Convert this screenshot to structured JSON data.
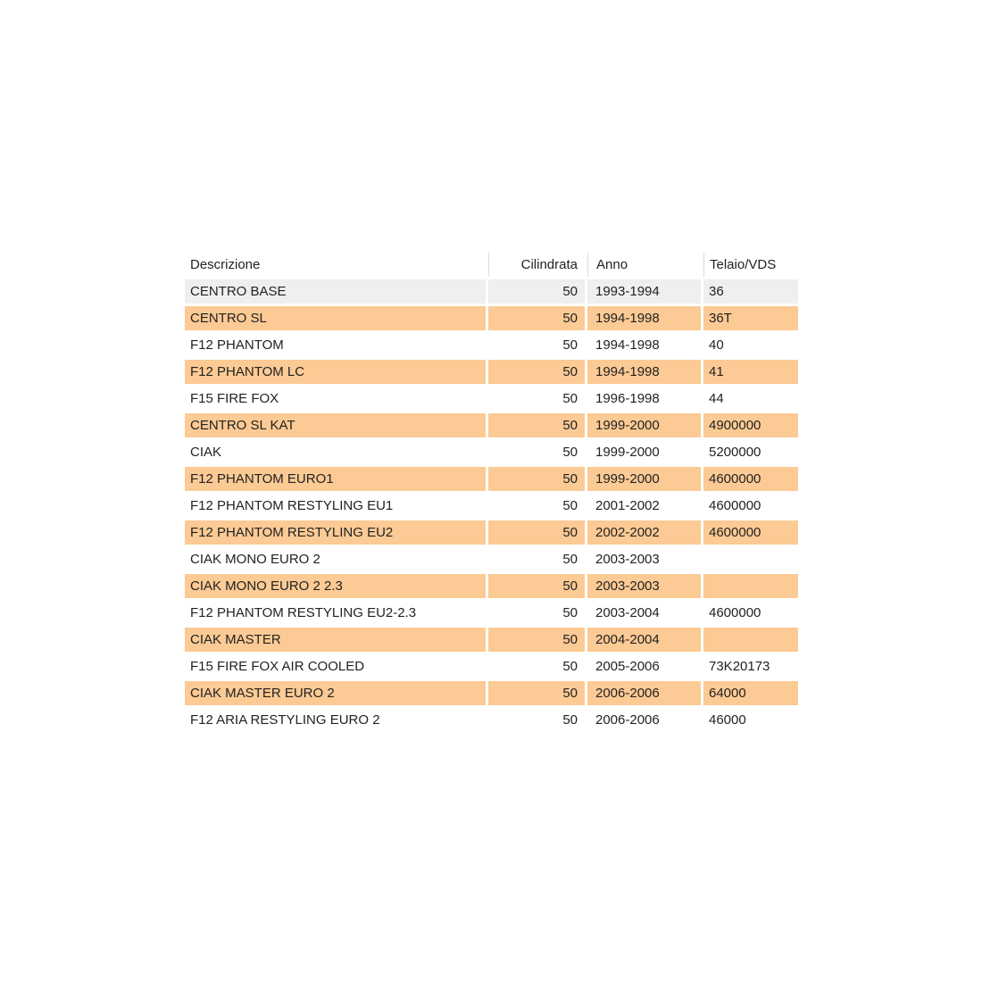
{
  "table": {
    "columns": [
      {
        "key": "descrizione",
        "label": "Descrizione"
      },
      {
        "key": "cilindrata",
        "label": "Cilindrata"
      },
      {
        "key": "anno",
        "label": "Anno"
      },
      {
        "key": "telaio",
        "label": "Telaio/VDS"
      }
    ],
    "rows": [
      {
        "descrizione": "CENTRO BASE",
        "cilindrata": "50",
        "anno": "1993-1994",
        "telaio": "36",
        "bg": "gray"
      },
      {
        "descrizione": "CENTRO SL",
        "cilindrata": "50",
        "anno": "1994-1998",
        "telaio": "36T",
        "bg": "orange"
      },
      {
        "descrizione": "F12 PHANTOM",
        "cilindrata": "50",
        "anno": "1994-1998",
        "telaio": "40",
        "bg": "white"
      },
      {
        "descrizione": "F12 PHANTOM LC",
        "cilindrata": "50",
        "anno": "1994-1998",
        "telaio": "41",
        "bg": "orange"
      },
      {
        "descrizione": "F15 FIRE FOX",
        "cilindrata": "50",
        "anno": "1996-1998",
        "telaio": "44",
        "bg": "white"
      },
      {
        "descrizione": "CENTRO SL KAT",
        "cilindrata": "50",
        "anno": "1999-2000",
        "telaio": "4900000",
        "bg": "orange"
      },
      {
        "descrizione": "CIAK",
        "cilindrata": "50",
        "anno": "1999-2000",
        "telaio": "5200000",
        "bg": "white"
      },
      {
        "descrizione": "F12 PHANTOM EURO1",
        "cilindrata": "50",
        "anno": "1999-2000",
        "telaio": "4600000",
        "bg": "orange"
      },
      {
        "descrizione": "F12 PHANTOM RESTYLING EU1",
        "cilindrata": "50",
        "anno": "2001-2002",
        "telaio": "4600000",
        "bg": "white"
      },
      {
        "descrizione": "F12 PHANTOM RESTYLING EU2",
        "cilindrata": "50",
        "anno": "2002-2002",
        "telaio": "4600000",
        "bg": "orange"
      },
      {
        "descrizione": "CIAK MONO EURO 2",
        "cilindrata": "50",
        "anno": "2003-2003",
        "telaio": "",
        "bg": "white"
      },
      {
        "descrizione": "CIAK MONO EURO 2 2.3",
        "cilindrata": "50",
        "anno": "2003-2003",
        "telaio": "",
        "bg": "orange"
      },
      {
        "descrizione": "F12 PHANTOM RESTYLING EU2-2.3",
        "cilindrata": "50",
        "anno": "2003-2004",
        "telaio": "4600000",
        "bg": "white"
      },
      {
        "descrizione": "CIAK MASTER",
        "cilindrata": "50",
        "anno": "2004-2004",
        "telaio": "",
        "bg": "orange"
      },
      {
        "descrizione": "F15 FIRE FOX AIR COOLED",
        "cilindrata": "50",
        "anno": "2005-2006",
        "telaio": "73K20173",
        "bg": "white"
      },
      {
        "descrizione": "CIAK MASTER EURO 2",
        "cilindrata": "50",
        "anno": "2006-2006",
        "telaio": "64000",
        "bg": "orange"
      },
      {
        "descrizione": "F12 ARIA RESTYLING EURO 2",
        "cilindrata": "50",
        "anno": "2006-2006",
        "telaio": "46000",
        "bg": "white"
      }
    ],
    "colors": {
      "orange": "#FCCA94",
      "gray": "#F0EEEE",
      "white": "#FFFFFF",
      "header_divider": "#DCDCDC",
      "text": "#222222"
    }
  }
}
